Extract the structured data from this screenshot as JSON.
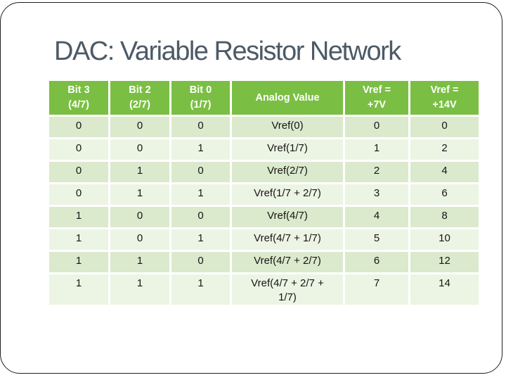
{
  "slide": {
    "title": "DAC: Variable Resistor Network"
  },
  "table": {
    "headers": [
      "Bit 3\n(4/7)",
      "Bit 2\n(2/7)",
      "Bit 0\n(1/7)",
      "Analog Value",
      "Vref =\n+7V",
      "Vref =\n+14V"
    ],
    "rows": [
      [
        "0",
        "0",
        "0",
        "Vref(0)",
        "0",
        "0"
      ],
      [
        "0",
        "0",
        "1",
        "Vref(1/7)",
        "1",
        "2"
      ],
      [
        "0",
        "1",
        "0",
        "Vref(2/7)",
        "2",
        "4"
      ],
      [
        "0",
        "1",
        "1",
        "Vref(1/7 + 2/7)",
        "3",
        "6"
      ],
      [
        "1",
        "0",
        "0",
        "Vref(4/7)",
        "4",
        "8"
      ],
      [
        "1",
        "0",
        "1",
        "Vref(4/7 + 1/7)",
        "5",
        "10"
      ],
      [
        "1",
        "1",
        "0",
        "Vref(4/7 + 2/7)",
        "6",
        "12"
      ],
      [
        "1",
        "1",
        "1",
        "Vref(4/7 + 2/7 + 1/7)",
        "7",
        "14"
      ]
    ]
  },
  "colors": {
    "title_text": "#4d5a66",
    "header_bg": "#7abf43",
    "header_text": "#ffffff",
    "row_odd_bg": "#dbe9cd",
    "row_even_bg": "#ecf4e4",
    "body_text": "#161616",
    "slide_border": "#1f1f1f",
    "background": "#ffffff"
  }
}
